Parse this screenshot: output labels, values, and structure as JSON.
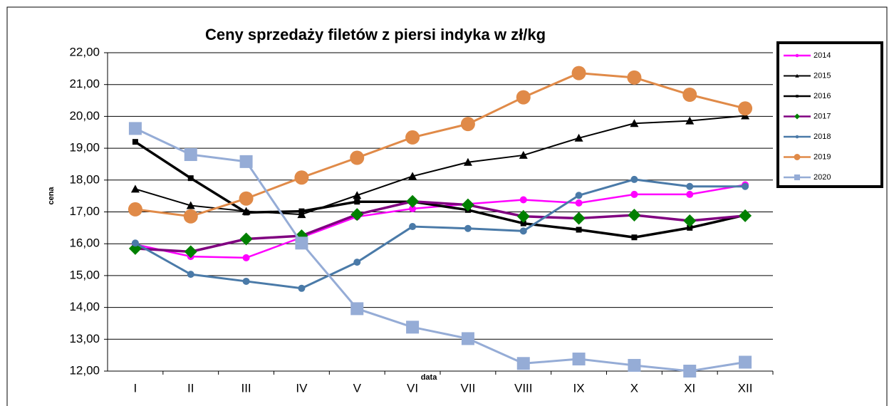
{
  "chart_data": {
    "type": "line",
    "title": "Ceny sprzedaży filetów z  piersi indyka w zł/kg",
    "x_label": "data",
    "y_label": "cena",
    "categories": [
      "I",
      "II",
      "III",
      "IV",
      "V",
      "VI",
      "VII",
      "VIII",
      "IX",
      "X",
      "XI",
      "XII"
    ],
    "ylim": [
      12,
      22
    ],
    "yticks": [
      {
        "value": 12,
        "label": "12,00"
      },
      {
        "value": 13,
        "label": "13,00"
      },
      {
        "value": 14,
        "label": "14,00"
      },
      {
        "value": 15,
        "label": "15,00"
      },
      {
        "value": 16,
        "label": "16,00"
      },
      {
        "value": 17,
        "label": "17,00"
      },
      {
        "value": 18,
        "label": "18,00"
      },
      {
        "value": 19,
        "label": "19,00"
      },
      {
        "value": 20,
        "label": "20,00"
      },
      {
        "value": 21,
        "label": "21,00"
      },
      {
        "value": 22,
        "label": "22,00"
      }
    ],
    "grid": true,
    "legend": "right",
    "series": [
      {
        "name": "2014",
        "color": "#ff00ff",
        "marker": "circle",
        "marker_color": "#ff00ff",
        "line_width": 2.5,
        "values": [
          15.98,
          15.6,
          15.56,
          16.2,
          16.85,
          17.1,
          17.25,
          17.38,
          17.28,
          17.55,
          17.55,
          17.85
        ]
      },
      {
        "name": "2015",
        "color": "#000000",
        "marker": "triangle",
        "marker_color": "#000000",
        "line_width": 2,
        "values": [
          17.72,
          17.2,
          17.02,
          16.92,
          17.52,
          18.12,
          18.56,
          18.78,
          19.32,
          19.78,
          19.86,
          20.02
        ]
      },
      {
        "name": "2016",
        "color": "#000000",
        "marker": "square",
        "marker_color": "#000000",
        "line_width": 3.5,
        "values": [
          19.2,
          18.06,
          16.98,
          17.02,
          17.32,
          17.32,
          17.06,
          16.64,
          16.44,
          16.2,
          16.5,
          16.9
        ]
      },
      {
        "name": "2017",
        "color": "#800080",
        "marker": "diamond",
        "marker_color": "#008000",
        "line_width": 3.5,
        "values": [
          15.85,
          15.75,
          16.15,
          16.25,
          16.92,
          17.33,
          17.22,
          16.86,
          16.8,
          16.9,
          16.72,
          16.88
        ]
      },
      {
        "name": "2018",
        "color": "#4a7aa8",
        "marker": "circle",
        "marker_color": "#4a7aa8",
        "line_width": 3,
        "values": [
          16.02,
          15.04,
          14.82,
          14.6,
          15.42,
          16.54,
          16.48,
          16.4,
          17.52,
          18.02,
          17.8,
          17.8
        ]
      },
      {
        "name": "2019",
        "color": "#e08a48",
        "marker": "bigcircle",
        "marker_color": "#e08a48",
        "line_width": 3,
        "values": [
          17.08,
          16.86,
          17.42,
          18.08,
          18.7,
          19.34,
          19.76,
          20.6,
          21.36,
          21.22,
          20.68,
          20.25
        ]
      },
      {
        "name": "2020",
        "color": "#95acd6",
        "marker": "bigsquare",
        "marker_color": "#95acd6",
        "line_width": 3,
        "values": [
          19.62,
          18.8,
          18.58,
          16.02,
          13.96,
          13.38,
          13.02,
          12.24,
          12.38,
          12.18,
          12.0,
          12.28
        ]
      }
    ]
  }
}
